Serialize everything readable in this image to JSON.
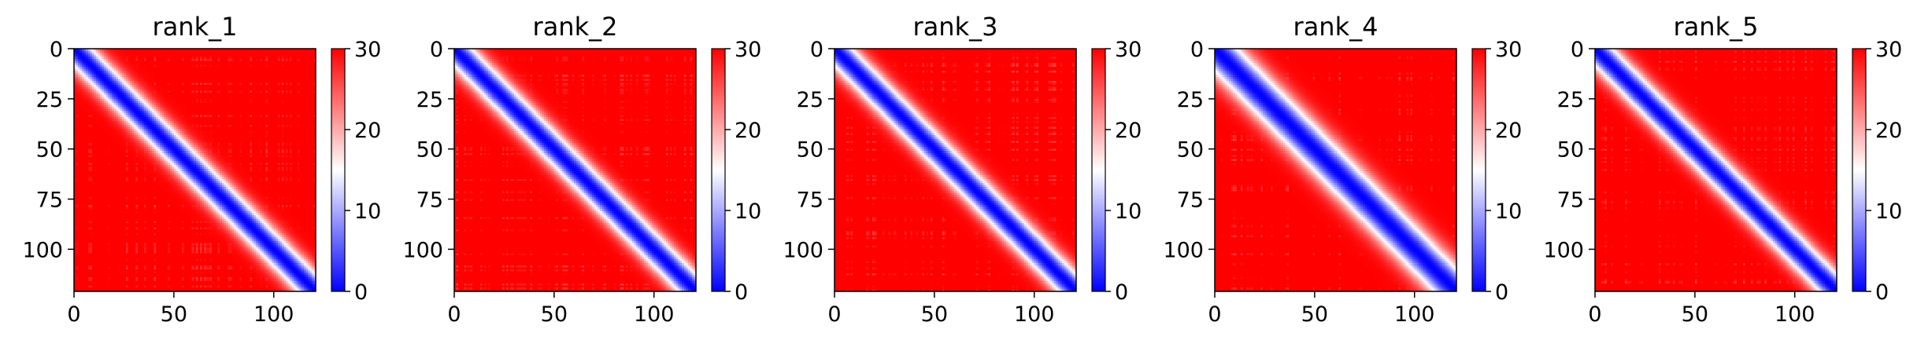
{
  "chart_data": [
    {
      "type": "heatmap",
      "title": "rank_1",
      "x_ticks": [
        0,
        50,
        100
      ],
      "y_ticks": [
        0,
        25,
        50,
        75,
        100
      ],
      "xlim": [
        0,
        121
      ],
      "ylim": [
        121,
        0
      ],
      "colorbar": {
        "min": 0,
        "max": 30,
        "ticks": [
          0,
          10,
          20,
          30
        ],
        "colors": [
          "#0000ff",
          "#ffffff",
          "#ff0000"
        ]
      },
      "diagonal_width": 10
    },
    {
      "type": "heatmap",
      "title": "rank_2",
      "x_ticks": [
        0,
        50,
        100
      ],
      "y_ticks": [
        0,
        25,
        50,
        75,
        100
      ],
      "xlim": [
        0,
        121
      ],
      "ylim": [
        121,
        0
      ],
      "colorbar": {
        "min": 0,
        "max": 30,
        "ticks": [
          0,
          10,
          20,
          30
        ],
        "colors": [
          "#0000ff",
          "#ffffff",
          "#ff0000"
        ]
      },
      "diagonal_width": 10
    },
    {
      "type": "heatmap",
      "title": "rank_3",
      "x_ticks": [
        0,
        50,
        100
      ],
      "y_ticks": [
        0,
        25,
        50,
        75,
        100
      ],
      "xlim": [
        0,
        121
      ],
      "ylim": [
        121,
        0
      ],
      "colorbar": {
        "min": 0,
        "max": 30,
        "ticks": [
          0,
          10,
          20,
          30
        ],
        "colors": [
          "#0000ff",
          "#ffffff",
          "#ff0000"
        ]
      },
      "diagonal_width": 10
    },
    {
      "type": "heatmap",
      "title": "rank_4",
      "x_ticks": [
        0,
        50,
        100
      ],
      "y_ticks": [
        0,
        25,
        50,
        75,
        100
      ],
      "xlim": [
        0,
        121
      ],
      "ylim": [
        121,
        0
      ],
      "colorbar": {
        "min": 0,
        "max": 30,
        "ticks": [
          0,
          10,
          20,
          30
        ],
        "colors": [
          "#0000ff",
          "#ffffff",
          "#ff0000"
        ]
      },
      "diagonal_width": 13
    },
    {
      "type": "heatmap",
      "title": "rank_5",
      "x_ticks": [
        0,
        50,
        100
      ],
      "y_ticks": [
        0,
        25,
        50,
        75,
        100
      ],
      "xlim": [
        0,
        121
      ],
      "ylim": [
        121,
        0
      ],
      "colorbar": {
        "min": 0,
        "max": 30,
        "ticks": [
          0,
          10,
          20,
          30
        ],
        "colors": [
          "#0000ff",
          "#ffffff",
          "#ff0000"
        ]
      },
      "diagonal_width": 10
    }
  ]
}
